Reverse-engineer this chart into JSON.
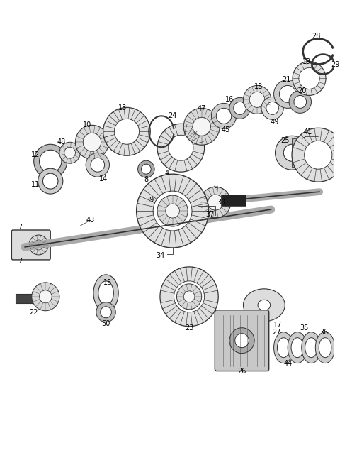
{
  "bg_color": "#ffffff",
  "line_color": "#333333",
  "fig_width": 4.8,
  "fig_height": 6.55,
  "dpi": 100
}
